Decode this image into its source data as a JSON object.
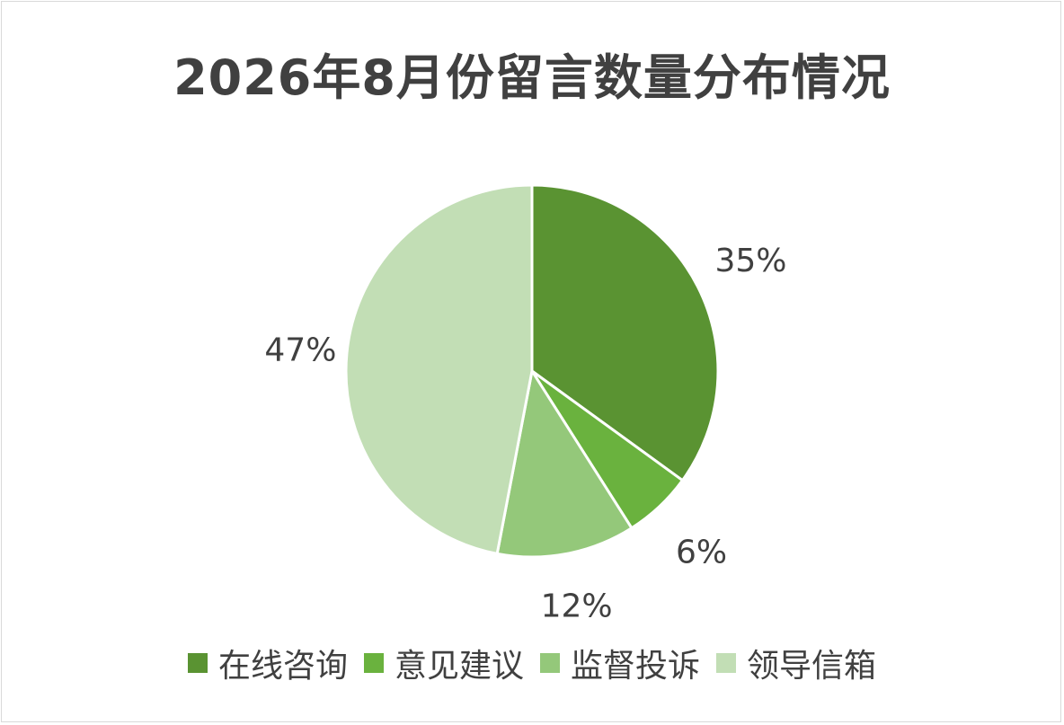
{
  "chart_data": {
    "type": "pie",
    "title": "2026年8月份留言数量分布情况",
    "categories": [
      "在线咨询",
      "意见建议",
      "监督投诉",
      "领导信箱"
    ],
    "values": [
      35,
      6,
      12,
      47
    ],
    "labels": [
      "35%",
      "6%",
      "12%",
      "47%"
    ],
    "colors": [
      "#5a9332",
      "#6ab23e",
      "#94c87a",
      "#c2deb5"
    ],
    "legend_position": "bottom"
  }
}
